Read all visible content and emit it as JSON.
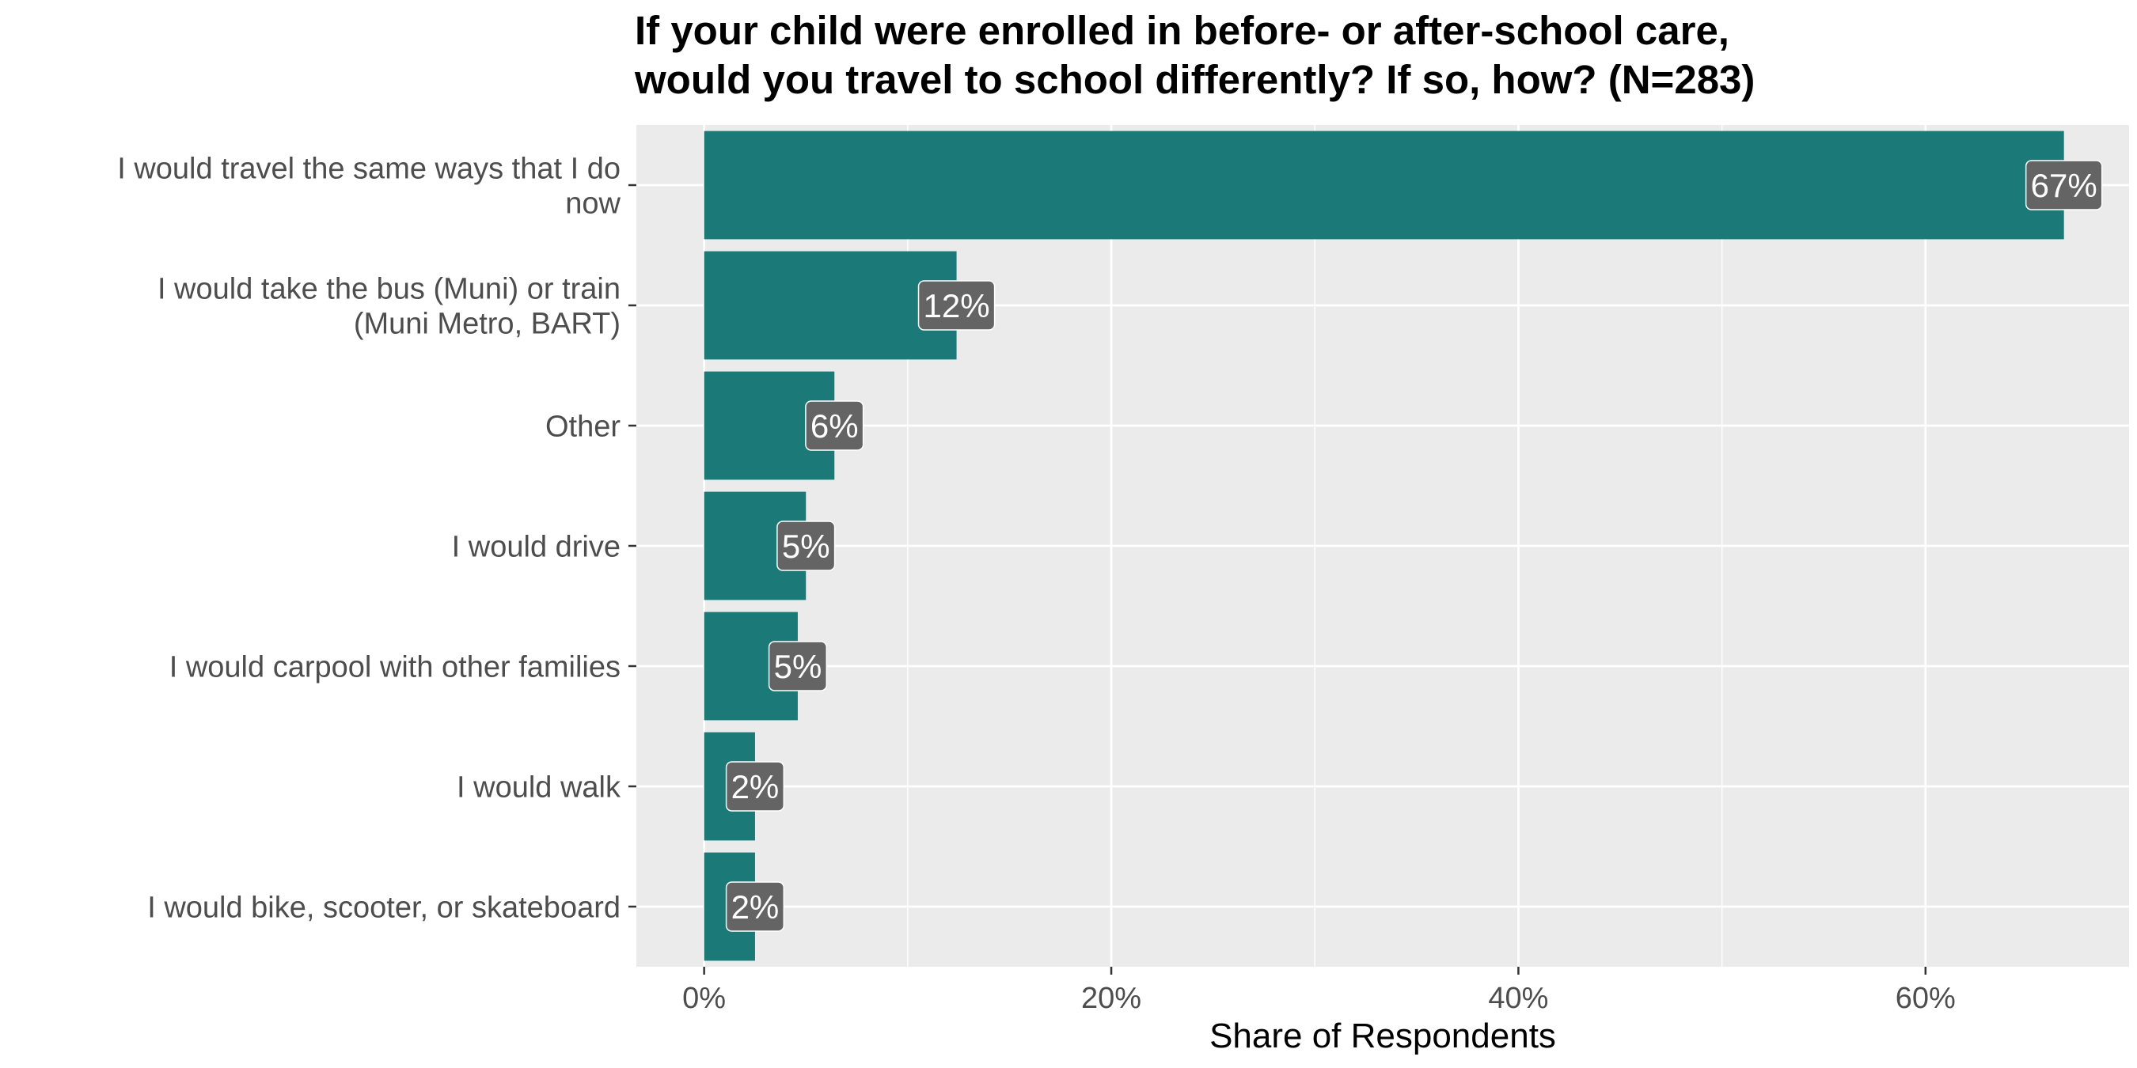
{
  "chart_data": {
    "type": "bar",
    "orientation": "horizontal",
    "title_lines": [
      "If your child were enrolled in before- or after-school care,",
      "would you travel to school differently? If so, how? (N=283)"
    ],
    "xlabel": "Share of Respondents",
    "ylabel": "",
    "xlim": [
      -0.0333,
      0.7
    ],
    "x_ticks": [
      0,
      0.2,
      0.4,
      0.6
    ],
    "x_tick_labels": [
      "0%",
      "20%",
      "40%",
      "60%"
    ],
    "categories": [
      [
        "I would travel the same ways that I do",
        "now"
      ],
      [
        "I would take the bus (Muni) or train",
        "(Muni Metro, BART)"
      ],
      [
        "Other"
      ],
      [
        "I would drive"
      ],
      [
        "I would carpool with other families"
      ],
      [
        "I would walk"
      ],
      [
        "I would bike, scooter, or skateboard"
      ]
    ],
    "values": [
      0.668,
      0.124,
      0.064,
      0.05,
      0.046,
      0.025,
      0.025
    ],
    "data_labels": [
      "67%",
      "12%",
      "6%",
      "5%",
      "5%",
      "2%",
      "2%"
    ],
    "grid": true,
    "legend": "none",
    "colors": {
      "bar": "#1b7a78",
      "panel": "#ebebeb",
      "grid": "#ffffff",
      "label_box": "#646464",
      "label_text": "#ffffff",
      "axis_text": "#4d4d4d"
    }
  }
}
